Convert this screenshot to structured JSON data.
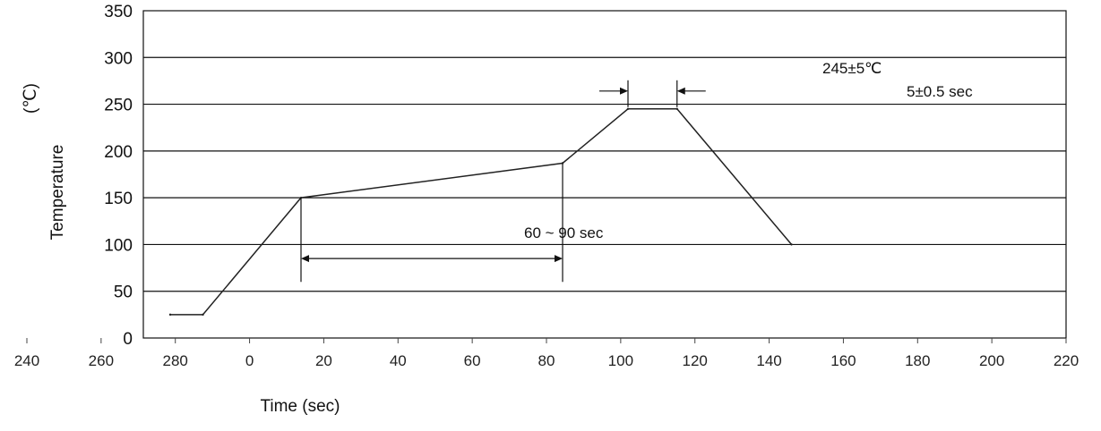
{
  "chart_data": {
    "type": "line",
    "title": "",
    "xlabel": "Time (sec)",
    "ylabel": "Temperature",
    "yunit": "(℃)",
    "ylim": [
      0,
      350
    ],
    "yticks": [
      0,
      50,
      100,
      150,
      200,
      250,
      300,
      350
    ],
    "xticks": [
      "240",
      "260",
      "280",
      "0",
      "20",
      "40",
      "60",
      "80",
      "100",
      "120",
      "140",
      "160",
      "180",
      "200",
      "220"
    ],
    "grid": "horizontal",
    "series": [
      {
        "points": [
          {
            "x": 0,
            "y": 25
          },
          {
            "x": 10,
            "y": 25
          },
          {
            "x": 40,
            "y": 150
          },
          {
            "x": 120,
            "y": 187
          },
          {
            "x": 140,
            "y": 245
          },
          {
            "x": 155,
            "y": 245
          },
          {
            "x": 190,
            "y": 100
          }
        ]
      }
    ],
    "annotations": {
      "peak_temp": "245±5℃",
      "peak_time": "5±0.5 sec",
      "soak_time": "60 ~ 90 sec"
    }
  }
}
